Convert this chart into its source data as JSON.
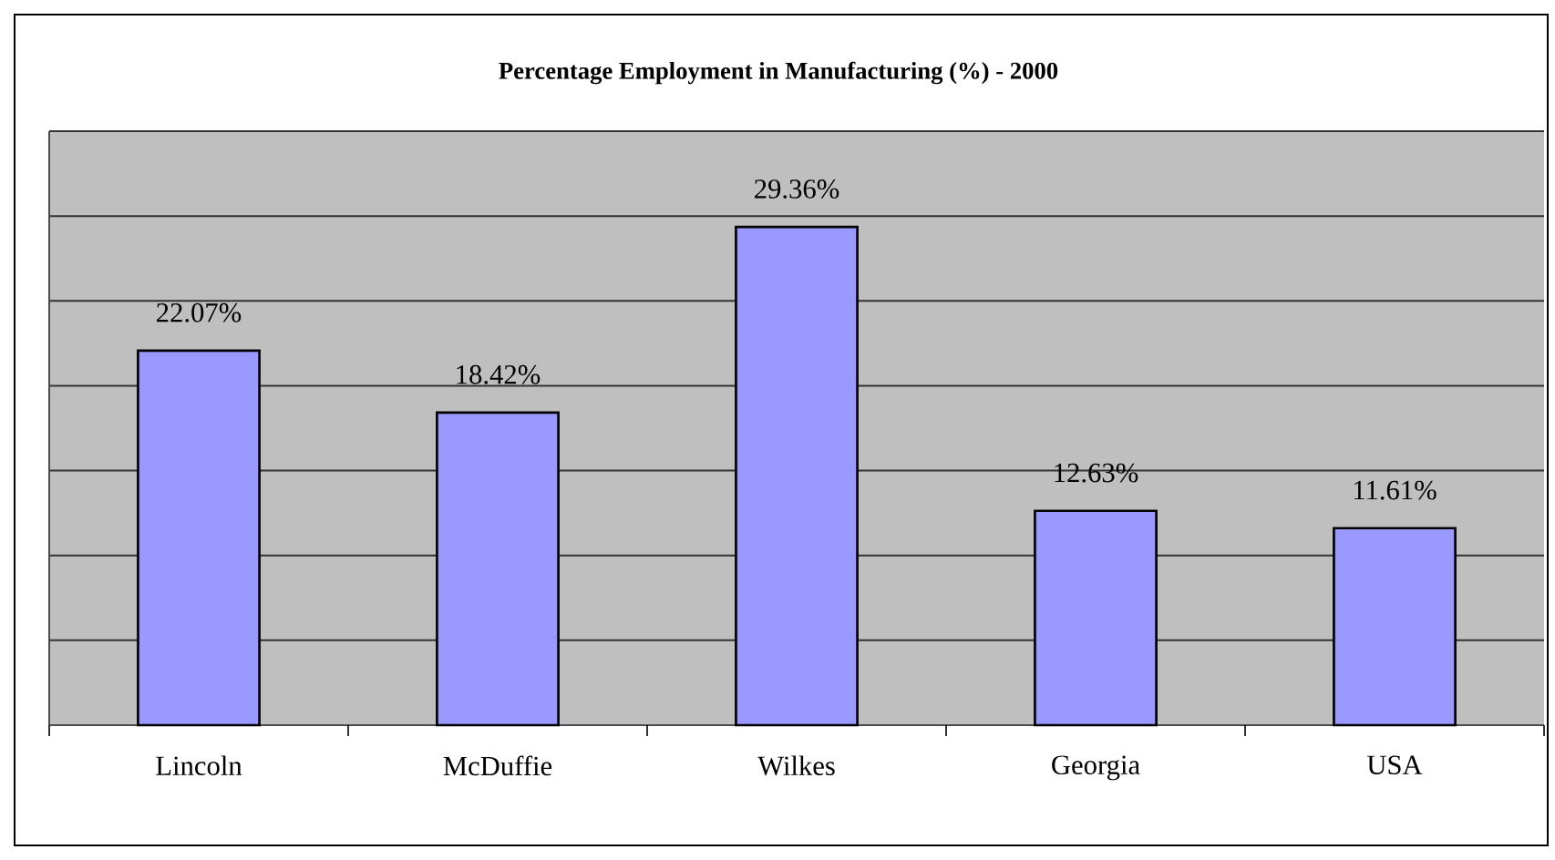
{
  "chart_data": {
    "type": "bar",
    "title": "Percentage Employment in Manufacturing (%) - 2000",
    "categories": [
      "Lincoln",
      "McDuffie",
      "Wilkes",
      "Georgia",
      "USA"
    ],
    "values": [
      22.07,
      18.42,
      29.36,
      12.63,
      11.61
    ],
    "value_labels": [
      "22.07%",
      "18.42%",
      "29.36%",
      "12.63%",
      "11.61%"
    ],
    "color": "#9999ff",
    "ylim": [
      0,
      35
    ],
    "yticks": [
      {
        "value": 0,
        "label": null
      },
      {
        "value": 5,
        "label": null
      },
      {
        "value": 10,
        "label": null
      },
      {
        "value": 15,
        "label": null
      },
      {
        "value": 20,
        "label": null
      },
      {
        "value": 25,
        "label": null
      },
      {
        "value": 30,
        "label": null
      },
      {
        "value": 35,
        "label": null
      }
    ],
    "grid": "y",
    "tick_labels": "x"
  }
}
